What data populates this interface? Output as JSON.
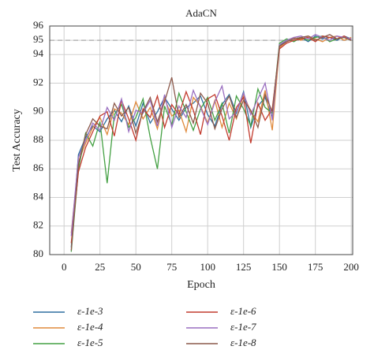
{
  "chart_data": {
    "type": "line",
    "title": "AdaCN",
    "x_label": "Epoch",
    "y_label": "Test Accuracy",
    "xlim": [
      -10,
      201
    ],
    "ylim": [
      80,
      96
    ],
    "xticks": [
      0,
      25,
      50,
      75,
      100,
      125,
      150,
      175,
      200
    ],
    "yticks": [
      80,
      82,
      84,
      86,
      88,
      90,
      92,
      94,
      95,
      96
    ],
    "grid": true,
    "reference_line": 95,
    "legend": "below",
    "x": [
      5,
      10,
      15,
      20,
      25,
      30,
      35,
      40,
      45,
      50,
      55,
      60,
      65,
      70,
      75,
      80,
      85,
      90,
      95,
      100,
      105,
      110,
      115,
      120,
      125,
      130,
      135,
      140,
      145,
      150,
      155,
      160,
      165,
      170,
      175,
      180,
      185,
      190,
      195,
      200
    ],
    "series": [
      {
        "name": "ε-1e-3",
        "color": "#2f6f9f",
        "values": [
          80.5,
          87.0,
          88.2,
          89.0,
          88.6,
          89.5,
          90.1,
          89.3,
          90.4,
          89.0,
          90.6,
          89.2,
          90.0,
          91.0,
          90.2,
          89.4,
          90.3,
          90.6,
          91.1,
          89.8,
          89.0,
          90.5,
          91.2,
          89.9,
          91.4,
          88.9,
          90.4,
          91.0,
          89.6,
          94.6,
          95.0,
          95.1,
          95.2,
          94.9,
          95.3,
          95.1,
          95.2,
          95.0,
          95.3,
          95.1
        ]
      },
      {
        "name": "ε-1e-4",
        "color": "#e08a3c",
        "values": [
          81.5,
          86.5,
          87.8,
          88.9,
          89.6,
          88.4,
          90.2,
          89.9,
          89.1,
          90.7,
          89.5,
          90.3,
          88.8,
          90.9,
          89.7,
          90.1,
          88.6,
          91.0,
          90.4,
          89.2,
          90.8,
          88.9,
          90.6,
          89.5,
          91.2,
          90.0,
          89.3,
          91.5,
          88.7,
          94.5,
          94.9,
          95.2,
          95.0,
          95.3,
          95.1,
          94.9,
          95.2,
          95.3,
          95.0,
          95.2
        ]
      },
      {
        "name": "ε-1e-5",
        "color": "#44a043",
        "values": [
          80.2,
          86.0,
          88.5,
          87.6,
          89.3,
          85.0,
          89.8,
          90.5,
          88.9,
          89.6,
          90.9,
          88.2,
          86.0,
          90.4,
          89.1,
          91.3,
          90.0,
          88.7,
          90.2,
          91.0,
          89.4,
          90.6,
          88.5,
          91.1,
          90.2,
          89.0,
          91.6,
          90.3,
          89.9,
          94.8,
          95.1,
          94.9,
          95.2,
          95.0,
          95.2,
          95.3,
          94.9,
          95.1,
          95.2,
          95.0
        ]
      },
      {
        "name": "ε-1e-6",
        "color": "#c23b2e",
        "values": [
          80.8,
          85.8,
          87.5,
          88.6,
          89.7,
          90.0,
          88.3,
          90.8,
          89.5,
          88.0,
          90.2,
          89.6,
          91.1,
          88.9,
          90.5,
          89.8,
          91.4,
          90.1,
          88.4,
          90.9,
          91.2,
          89.7,
          88.0,
          90.3,
          91.0,
          87.8,
          90.6,
          89.4,
          90.2,
          94.4,
          94.8,
          95.0,
          95.1,
          95.2,
          94.9,
          95.3,
          95.2,
          95.1,
          95.3,
          95.0
        ]
      },
      {
        "name": "ε-1e-7",
        "color": "#9a6fc0",
        "values": [
          81.3,
          86.8,
          88.0,
          89.2,
          88.7,
          90.3,
          89.4,
          90.9,
          88.6,
          90.1,
          89.9,
          90.8,
          89.0,
          91.2,
          88.9,
          90.4,
          89.6,
          91.5,
          90.3,
          89.1,
          90.7,
          91.8,
          89.5,
          90.0,
          91.3,
          89.8,
          90.9,
          92.0,
          89.4,
          94.7,
          95.0,
          95.2,
          95.3,
          95.1,
          95.4,
          95.2,
          95.0,
          95.3,
          95.2,
          95.1
        ]
      },
      {
        "name": "ε-1e-8",
        "color": "#8c5a4c",
        "values": [
          80.3,
          86.3,
          88.4,
          89.5,
          89.0,
          88.8,
          90.6,
          89.7,
          90.3,
          88.5,
          90.0,
          91.0,
          89.3,
          90.7,
          92.4,
          89.6,
          90.5,
          89.2,
          91.3,
          90.6,
          88.8,
          90.2,
          91.1,
          89.6,
          90.8,
          90.1,
          88.9,
          91.2,
          90.0,
          94.6,
          94.9,
          95.1,
          95.2,
          95.3,
          95.0,
          95.2,
          95.4,
          95.1,
          95.2,
          95.0
        ]
      }
    ]
  }
}
